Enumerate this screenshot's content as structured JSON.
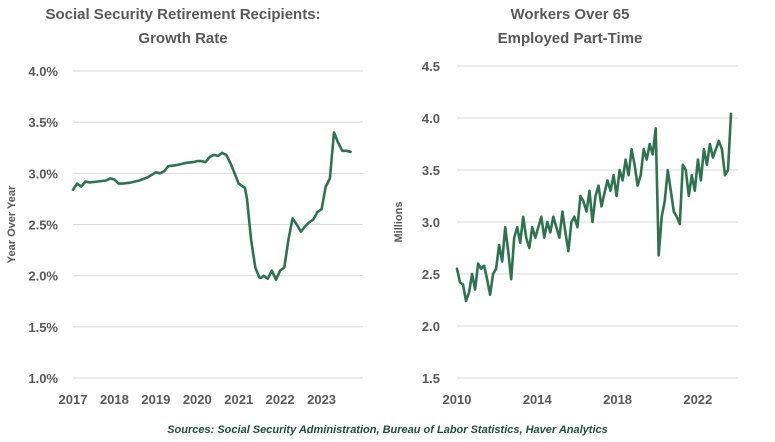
{
  "source_note": "Sources: Social Security Administration, Bureau of Labor Statistics, Haver Analytics",
  "colors": {
    "line": "#2e7350",
    "grid": "#d9d9d9",
    "text": "#595959"
  },
  "chart_data": [
    {
      "type": "line",
      "title_lines": [
        "Social Security Retirement Recipients:",
        "Growth Rate"
      ],
      "xlabel": "",
      "ylabel": "Year Over Year",
      "ylim": [
        1.0,
        4.0
      ],
      "xlim": [
        2017,
        2024
      ],
      "y_ticks": [
        "1.0%",
        "1.5%",
        "2.0%",
        "2.5%",
        "3.0%",
        "3.5%",
        "4.0%"
      ],
      "y_tick_values": [
        1.0,
        1.5,
        2.0,
        2.5,
        3.0,
        3.5,
        4.0
      ],
      "x_ticks": [
        "2017",
        "2018",
        "2019",
        "2020",
        "2021",
        "2022",
        "2023"
      ],
      "x_tick_values": [
        2017,
        2018,
        2019,
        2020,
        2021,
        2022,
        2023
      ],
      "grid": "horizontal",
      "series": [
        {
          "x": [
            2017.0,
            2017.1,
            2017.2,
            2017.3,
            2017.4,
            2017.6,
            2017.8,
            2017.9,
            2018.0,
            2018.1,
            2018.2,
            2018.4,
            2018.6,
            2018.8,
            2019.0,
            2019.1,
            2019.2,
            2019.3,
            2019.5,
            2019.7,
            2019.9,
            2020.0,
            2020.1,
            2020.2,
            2020.3,
            2020.4,
            2020.5,
            2020.6,
            2020.7,
            2020.8,
            2020.9,
            2021.0,
            2021.1,
            2021.15,
            2021.2,
            2021.3,
            2021.4,
            2021.5,
            2021.55,
            2021.6,
            2021.7,
            2021.8,
            2021.9,
            2022.0,
            2022.1,
            2022.2,
            2022.3,
            2022.4,
            2022.5,
            2022.6,
            2022.7,
            2022.8,
            2022.9,
            2023.0,
            2023.1,
            2023.2,
            2023.3,
            2023.4,
            2023.5,
            2023.6,
            2023.7
          ],
          "y": [
            2.84,
            2.9,
            2.87,
            2.92,
            2.91,
            2.92,
            2.93,
            2.95,
            2.94,
            2.9,
            2.9,
            2.91,
            2.93,
            2.96,
            3.01,
            3.0,
            3.02,
            3.07,
            3.08,
            3.1,
            3.11,
            3.12,
            3.12,
            3.11,
            3.16,
            3.18,
            3.17,
            3.2,
            3.18,
            3.1,
            3.0,
            2.9,
            2.87,
            2.86,
            2.75,
            2.35,
            2.08,
            1.98,
            1.98,
            2.0,
            1.97,
            2.05,
            1.96,
            2.05,
            2.08,
            2.35,
            2.56,
            2.5,
            2.43,
            2.48,
            2.52,
            2.55,
            2.62,
            2.65,
            2.87,
            2.95,
            3.4,
            3.3,
            3.22,
            3.22,
            3.21
          ]
        }
      ]
    },
    {
      "type": "line",
      "title_lines": [
        "Workers Over 65",
        "Employed Part-Time"
      ],
      "xlabel": "",
      "ylabel": "Millions",
      "ylim": [
        1.5,
        4.5
      ],
      "xlim": [
        2010,
        2024
      ],
      "y_ticks": [
        "1.5",
        "2.0",
        "2.5",
        "3.0",
        "3.5",
        "4.0",
        "4.5"
      ],
      "y_tick_values": [
        1.5,
        2.0,
        2.5,
        3.0,
        3.5,
        4.0,
        4.5
      ],
      "x_ticks": [
        "2010",
        "2014",
        "2018",
        "2022"
      ],
      "x_tick_values": [
        2010,
        2014,
        2018,
        2022
      ],
      "grid": "horizontal",
      "series": [
        {
          "x": [
            2010.0,
            2010.15,
            2010.3,
            2010.45,
            2010.6,
            2010.75,
            2010.9,
            2011.05,
            2011.2,
            2011.35,
            2011.5,
            2011.65,
            2011.8,
            2011.95,
            2012.1,
            2012.25,
            2012.4,
            2012.55,
            2012.7,
            2012.85,
            2013.0,
            2013.15,
            2013.3,
            2013.45,
            2013.6,
            2013.75,
            2013.9,
            2014.05,
            2014.2,
            2014.35,
            2014.5,
            2014.65,
            2014.8,
            2014.95,
            2015.1,
            2015.25,
            2015.4,
            2015.55,
            2015.7,
            2015.85,
            2016.0,
            2016.15,
            2016.3,
            2016.45,
            2016.6,
            2016.75,
            2016.9,
            2017.05,
            2017.2,
            2017.35,
            2017.5,
            2017.65,
            2017.8,
            2017.95,
            2018.1,
            2018.25,
            2018.4,
            2018.55,
            2018.7,
            2018.85,
            2019.0,
            2019.15,
            2019.3,
            2019.45,
            2019.6,
            2019.75,
            2019.9,
            2020.05,
            2020.2,
            2020.35,
            2020.5,
            2020.65,
            2020.8,
            2020.95,
            2021.1,
            2021.25,
            2021.4,
            2021.55,
            2021.7,
            2021.85,
            2022.0,
            2022.15,
            2022.3,
            2022.45,
            2022.6,
            2022.75,
            2022.9,
            2023.05,
            2023.2,
            2023.35,
            2023.5,
            2023.65
          ],
          "y": [
            2.55,
            2.42,
            2.4,
            2.24,
            2.32,
            2.5,
            2.35,
            2.6,
            2.55,
            2.58,
            2.45,
            2.3,
            2.5,
            2.55,
            2.78,
            2.62,
            2.95,
            2.72,
            2.45,
            2.85,
            2.95,
            2.8,
            3.05,
            2.85,
            2.75,
            2.95,
            2.85,
            2.95,
            3.05,
            2.85,
            3.0,
            2.9,
            3.05,
            2.95,
            2.85,
            3.1,
            2.9,
            2.72,
            3.0,
            3.05,
            2.95,
            3.25,
            3.2,
            3.1,
            3.3,
            3.0,
            3.25,
            3.35,
            3.15,
            3.28,
            3.4,
            3.3,
            3.45,
            3.25,
            3.5,
            3.4,
            3.6,
            3.45,
            3.7,
            3.55,
            3.35,
            3.45,
            3.7,
            3.6,
            3.75,
            3.65,
            3.9,
            2.68,
            3.05,
            3.2,
            3.5,
            3.3,
            3.1,
            3.05,
            2.98,
            3.55,
            3.5,
            3.25,
            3.45,
            3.3,
            3.6,
            3.4,
            3.7,
            3.55,
            3.75,
            3.62,
            3.7,
            3.78,
            3.7,
            3.45,
            3.5,
            4.04
          ]
        }
      ]
    }
  ]
}
